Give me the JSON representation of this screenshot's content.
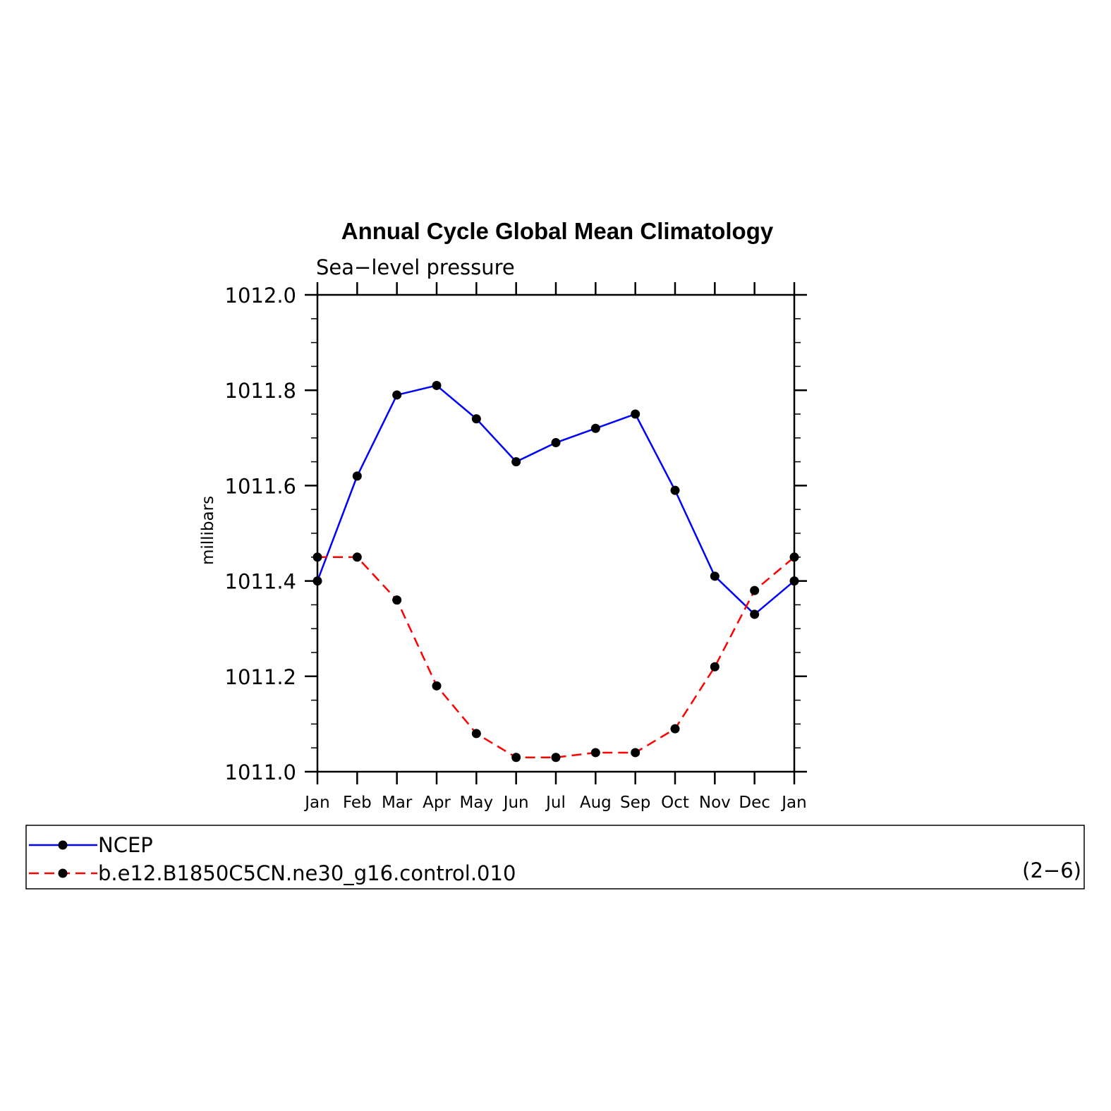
{
  "chart_data": {
    "type": "line",
    "title": "Annual Cycle Global Mean Climatology",
    "subtitle": "Sea−level pressure",
    "ylabel": "millibars",
    "xlabel": "",
    "categories": [
      "Jan",
      "Feb",
      "Mar",
      "Apr",
      "May",
      "Jun",
      "Jul",
      "Aug",
      "Sep",
      "Oct",
      "Nov",
      "Dec",
      "Jan"
    ],
    "ylim": [
      1011.0,
      1012.0
    ],
    "yticks": [
      "1011.0",
      "1011.2",
      "1011.4",
      "1011.6",
      "1011.8",
      "1012.0"
    ],
    "grid": false,
    "legend_position": "bottom",
    "series": [
      {
        "name": "NCEP",
        "color": "#0000ff",
        "style": "solid",
        "values": [
          1011.4,
          1011.62,
          1011.79,
          1011.81,
          1011.74,
          1011.65,
          1011.69,
          1011.72,
          1011.75,
          1011.59,
          1011.41,
          1011.33,
          1011.4
        ]
      },
      {
        "name": "b.e12.B1850C5CN.ne30_g16.control.010",
        "color": "#ff0000",
        "style": "dashed",
        "values": [
          1011.45,
          1011.45,
          1011.36,
          1011.18,
          1011.08,
          1011.03,
          1011.03,
          1011.04,
          1011.04,
          1011.09,
          1011.22,
          1011.38,
          1011.45
        ]
      }
    ],
    "annotation": "(2−6)"
  }
}
